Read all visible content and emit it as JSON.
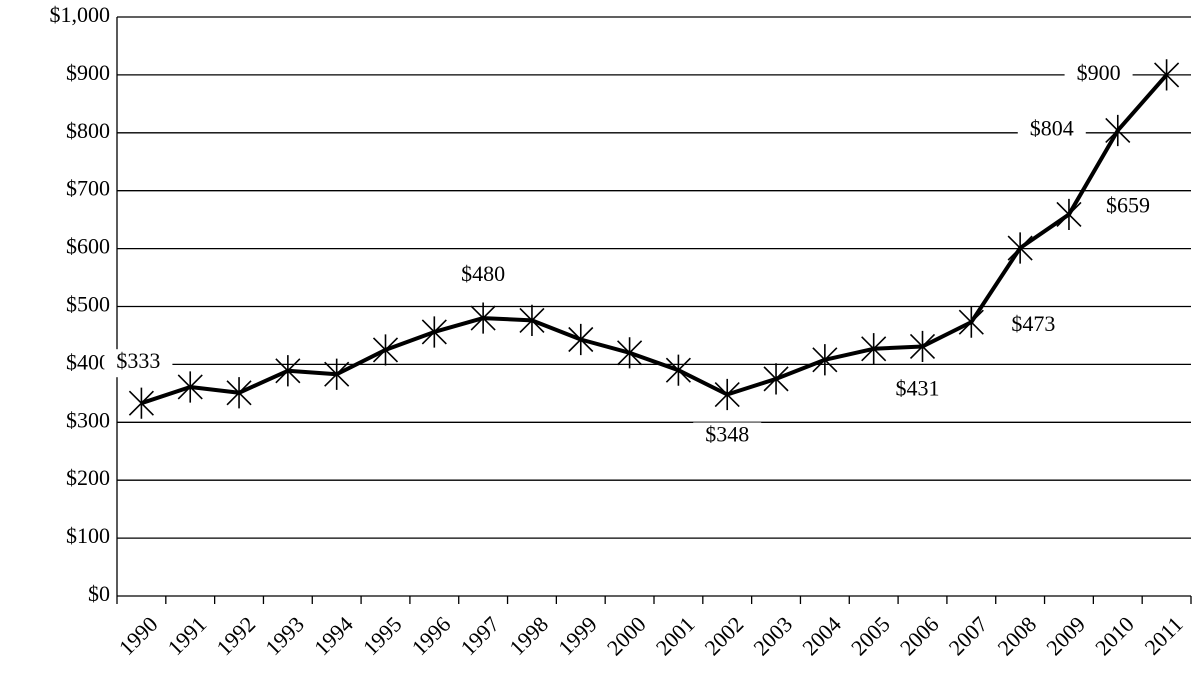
{
  "chart_data": {
    "type": "line",
    "categories": [
      "1990",
      "1991",
      "1992",
      "1993",
      "1994",
      "1995",
      "1996",
      "1997",
      "1998",
      "1999",
      "2000",
      "2001",
      "2002",
      "2003",
      "2004",
      "2005",
      "2006",
      "2007",
      "2008",
      "2009",
      "2010",
      "2011"
    ],
    "values": [
      333,
      361,
      351,
      389,
      383,
      425,
      456,
      480,
      476,
      443,
      420,
      390,
      348,
      375,
      408,
      427,
      431,
      473,
      601,
      659,
      804,
      900
    ],
    "value_labels": [
      "$333",
      null,
      null,
      null,
      null,
      null,
      null,
      "$480",
      null,
      null,
      null,
      null,
      "$348",
      null,
      null,
      null,
      "$431",
      "$473",
      null,
      "$659",
      "$804",
      "$900"
    ],
    "color": "#000000",
    "ylim": [
      0,
      1000
    ],
    "yticks": [
      {
        "value": 0,
        "label": "$0"
      },
      {
        "value": 100,
        "label": "$100"
      },
      {
        "value": 200,
        "label": "$200"
      },
      {
        "value": 300,
        "label": "$300"
      },
      {
        "value": 400,
        "label": "$400"
      },
      {
        "value": 500,
        "label": "$500"
      },
      {
        "value": 600,
        "label": "$600"
      },
      {
        "value": 700,
        "label": "$700"
      },
      {
        "value": 800,
        "label": "$800"
      },
      {
        "value": 900,
        "label": "$900"
      },
      {
        "value": 1000,
        "label": "$1,000"
      }
    ],
    "grid": true
  }
}
